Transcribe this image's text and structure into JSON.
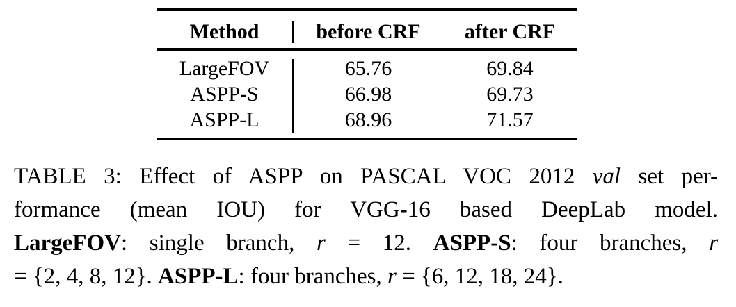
{
  "table": {
    "headers": [
      "Method",
      "before CRF",
      "after CRF"
    ],
    "rows": [
      {
        "method": "LargeFOV",
        "before_crf": "65.76",
        "after_crf": "69.84"
      },
      {
        "method": "ASPP-S",
        "before_crf": "66.98",
        "after_crf": "69.73"
      },
      {
        "method": "ASPP-L",
        "before_crf": "68.96",
        "after_crf": "71.57"
      }
    ]
  },
  "caption": {
    "label": "TABLE 3:",
    "line1_pre": "Effect of ASPP on PASCAL VOC 2012",
    "line1_ital": "val",
    "line1_post": "set per-",
    "line2": "formance (mean IOU) for VGG-16 based DeepLab model.",
    "term1": "LargeFOV",
    "term1_desc": ": single branch,",
    "term1_r": "r",
    "term1_val": "= 12.",
    "term2": "ASPP-S",
    "term2_desc": ": four branches,",
    "term2_r": "r",
    "term2_val": "= {2, 4, 8, 12}.",
    "term3": "ASPP-L",
    "term3_desc": ": four branches,",
    "term3_r": "r",
    "term3_val": "= {6, 12, 18, 24}."
  }
}
